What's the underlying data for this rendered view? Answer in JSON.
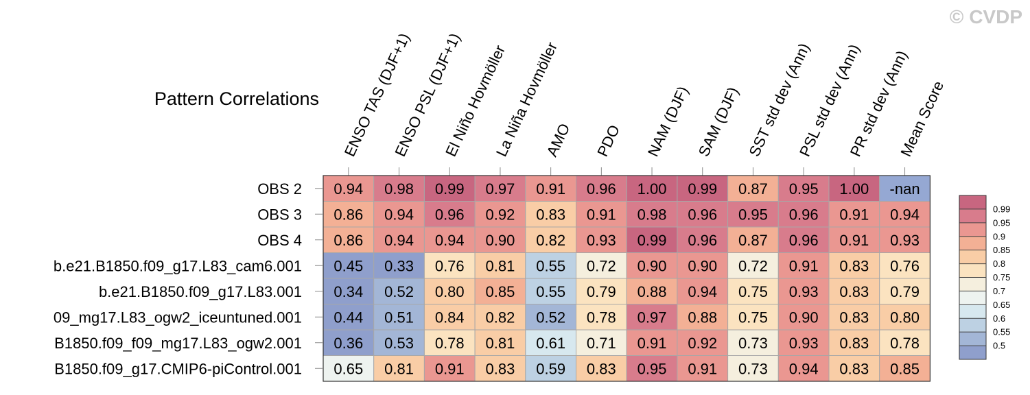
{
  "watermark": "© CVDP",
  "chart_data": {
    "type": "heatmap",
    "title": "Pattern Correlations",
    "columns": [
      "ENSO TAS (DJF+1)",
      "ENSO PSL (DJF+1)",
      "El Niño Hovmöller",
      "La Niña Hovmöller",
      "AMO",
      "PDO",
      "NAM (DJF)",
      "SAM (DJF)",
      "SST std dev (Ann)",
      "PSL std dev (Ann)",
      "PR std dev (Ann)",
      "Mean Score"
    ],
    "rows": [
      "OBS 2",
      "OBS 3",
      "OBS 4",
      "b.e21.B1850.f09_g17.L83_cam6.001",
      "b.e21.B1850.f09_g17.L83.001",
      "09_mg17.L83_ogw2_iceuntuned.001",
      "B1850.f09_f09_mg17.L83_ogw2.001",
      "B1850.f09_g17.CMIP6-piControl.001"
    ],
    "values": [
      [
        0.94,
        0.98,
        0.99,
        0.97,
        0.91,
        0.96,
        1.0,
        0.99,
        0.87,
        0.95,
        1.0,
        null
      ],
      [
        0.86,
        0.94,
        0.96,
        0.92,
        0.83,
        0.91,
        0.98,
        0.96,
        0.95,
        0.96,
        0.91,
        0.94
      ],
      [
        0.86,
        0.94,
        0.94,
        0.9,
        0.82,
        0.93,
        0.99,
        0.96,
        0.87,
        0.96,
        0.91,
        0.93
      ],
      [
        0.45,
        0.33,
        0.76,
        0.81,
        0.55,
        0.72,
        0.9,
        0.9,
        0.72,
        0.91,
        0.83,
        0.76
      ],
      [
        0.34,
        0.52,
        0.8,
        0.85,
        0.55,
        0.79,
        0.88,
        0.94,
        0.75,
        0.93,
        0.83,
        0.79
      ],
      [
        0.44,
        0.51,
        0.84,
        0.82,
        0.52,
        0.78,
        0.97,
        0.88,
        0.75,
        0.9,
        0.83,
        0.8
      ],
      [
        0.36,
        0.53,
        0.78,
        0.81,
        0.61,
        0.71,
        0.91,
        0.92,
        0.73,
        0.93,
        0.83,
        0.78
      ],
      [
        0.65,
        0.81,
        0.91,
        0.83,
        0.59,
        0.83,
        0.95,
        0.91,
        0.73,
        0.94,
        0.83,
        0.85
      ]
    ],
    "labels": [
      [
        "0.94",
        "0.98",
        "0.99",
        "0.97",
        "0.91",
        "0.96",
        "1.00",
        "0.99",
        "0.87",
        "0.95",
        "1.00",
        "-nan"
      ],
      [
        "0.86",
        "0.94",
        "0.96",
        "0.92",
        "0.83",
        "0.91",
        "0.98",
        "0.96",
        "0.95",
        "0.96",
        "0.91",
        "0.94"
      ],
      [
        "0.86",
        "0.94",
        "0.94",
        "0.90",
        "0.82",
        "0.93",
        "0.99",
        "0.96",
        "0.87",
        "0.96",
        "0.91",
        "0.93"
      ],
      [
        "0.45",
        "0.33",
        "0.76",
        "0.81",
        "0.55",
        "0.72",
        "0.90",
        "0.90",
        "0.72",
        "0.91",
        "0.83",
        "0.76"
      ],
      [
        "0.34",
        "0.52",
        "0.80",
        "0.85",
        "0.55",
        "0.79",
        "0.88",
        "0.94",
        "0.75",
        "0.93",
        "0.83",
        "0.79"
      ],
      [
        "0.44",
        "0.51",
        "0.84",
        "0.82",
        "0.52",
        "0.78",
        "0.97",
        "0.88",
        "0.75",
        "0.90",
        "0.83",
        "0.80"
      ],
      [
        "0.36",
        "0.53",
        "0.78",
        "0.81",
        "0.61",
        "0.71",
        "0.91",
        "0.92",
        "0.73",
        "0.93",
        "0.83",
        "0.78"
      ],
      [
        "0.65",
        "0.81",
        "0.91",
        "0.83",
        "0.59",
        "0.83",
        "0.95",
        "0.91",
        "0.73",
        "0.94",
        "0.83",
        "0.85"
      ]
    ],
    "legend": {
      "position": "right",
      "levels": [
        0.5,
        0.55,
        0.6,
        0.65,
        0.7,
        0.75,
        0.8,
        0.85,
        0.9,
        0.95,
        0.99
      ],
      "tick_labels": [
        "0.5",
        "0.55",
        "0.6",
        "0.65",
        "0.7",
        "0.75",
        "0.8",
        "0.85",
        "0.9",
        "0.95",
        "0.99"
      ],
      "colors": [
        "#8f9fcc",
        "#a3b6d6",
        "#bdd1e3",
        "#d7e8ef",
        "#eef3f0",
        "#f5efde",
        "#fbe3c0",
        "#f9cda6",
        "#f3b095",
        "#ea9791",
        "#d87c8c",
        "#c86680"
      ],
      "nan_color": "#95a8d3"
    },
    "grid": true
  }
}
